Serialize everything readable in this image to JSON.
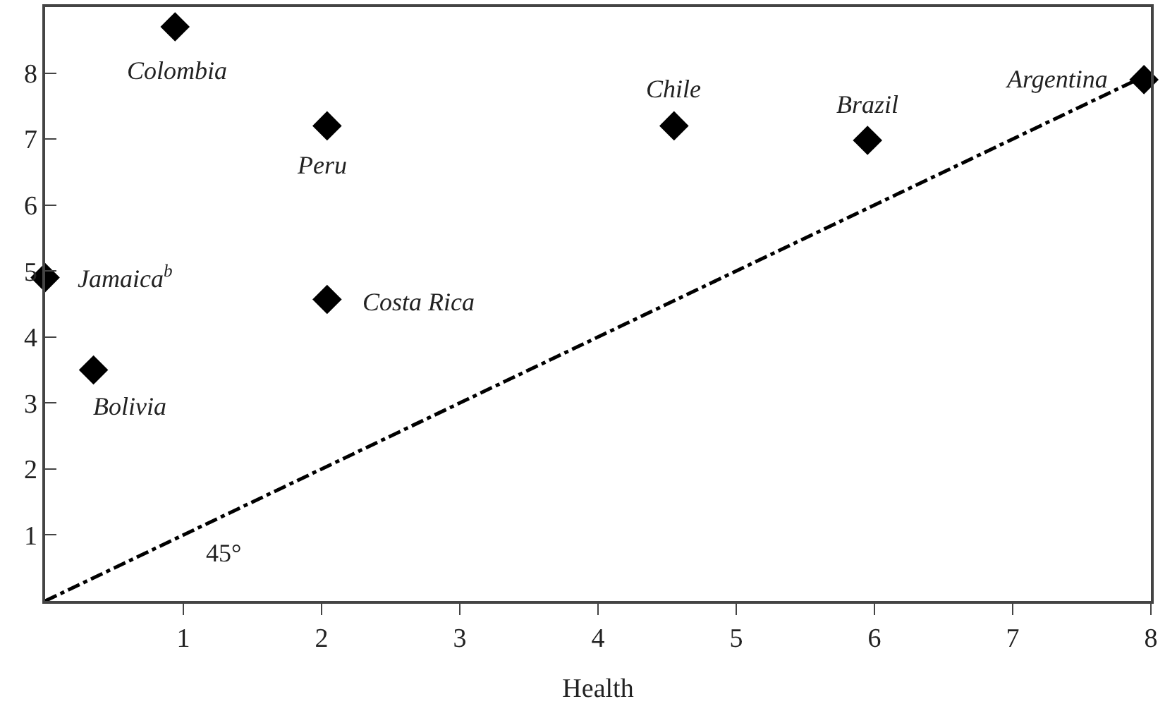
{
  "chart_data": {
    "type": "scatter",
    "xlabel": "Health",
    "xlim": [
      0,
      8
    ],
    "ylim": [
      0,
      9
    ],
    "xticks": [
      1,
      2,
      3,
      4,
      5,
      6,
      7,
      8
    ],
    "yticks": [
      1,
      2,
      3,
      4,
      5,
      6,
      7,
      8
    ],
    "grid": false,
    "marker": "diamond",
    "series": [
      {
        "color": "#000000",
        "x": [
          0.94,
          2.04,
          0,
          2.04,
          0.35,
          4.55,
          5.95,
          7.95
        ],
        "values": [
          8.7,
          7.2,
          4.9,
          4.57,
          3.5,
          7.2,
          6.98,
          7.9
        ]
      },
      {
        "type": "line",
        "color": "#000000",
        "line_style": "dashed",
        "marker": "none",
        "x": [
          0,
          7.9
        ],
        "values": [
          0,
          7.9
        ]
      }
    ],
    "annotations": [
      {
        "text": "Colombia",
        "x": 0.94,
        "y": 8.7
      },
      {
        "text": "Peru",
        "x": 2.04,
        "y": 7.2
      },
      {
        "text": "Jamaica$^{b}$",
        "x": 0,
        "y": 4.9
      },
      {
        "text": "Costa Rica",
        "x": 2.04,
        "y": 4.57
      },
      {
        "text": "Bolivia",
        "x": 0.35,
        "y": 3.5
      },
      {
        "text": "Chile",
        "x": 4.55,
        "y": 7.2
      },
      {
        "text": "Brazil",
        "x": 5.95,
        "y": 6.98
      },
      {
        "text": "Argentina",
        "x": 7.95,
        "y": 7.9
      },
      {
        "text": "45°",
        "x": 1,
        "y": 1
      }
    ]
  }
}
